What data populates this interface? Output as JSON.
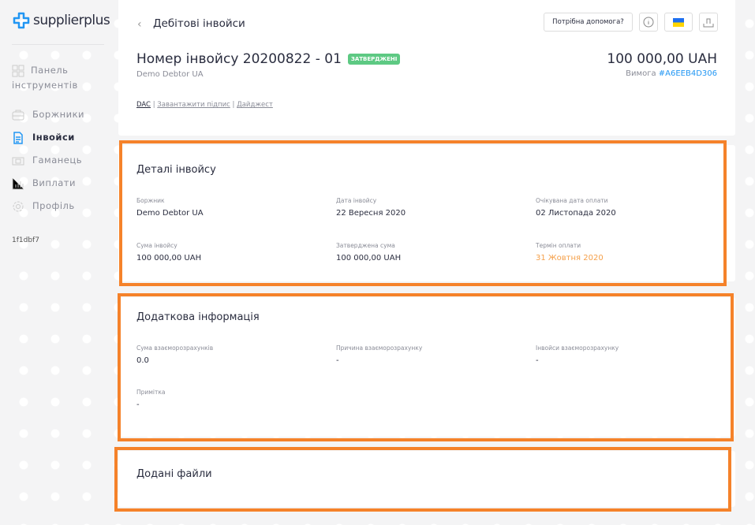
{
  "brand": {
    "name": "supplierplus",
    "color": "#2196f3"
  },
  "sidebar": {
    "items": [
      {
        "label": "Панель інструментів",
        "icon": "dashboard-icon",
        "active": false
      },
      {
        "label": "Боржники",
        "icon": "briefcase-icon",
        "active": false
      },
      {
        "label": "Інвойси",
        "icon": "document-icon",
        "active": true
      },
      {
        "label": "Гаманець",
        "icon": "wallet-icon",
        "active": false
      },
      {
        "label": "Виплати",
        "icon": "bar-chart-icon",
        "active": false
      },
      {
        "label": "Профіль",
        "icon": "gear-icon",
        "active": false
      }
    ],
    "version": "1f1dbf7"
  },
  "header": {
    "breadcrumb": "Дебітові інвойси",
    "help_label": "Потрібна допомога?",
    "title": "Номер інвойсу 20200822 - 01",
    "status": "ЗАТВЕРДЖЕНІ",
    "debtor": "Demo Debtor UA",
    "amount": "100 000,00 UAH",
    "request_label": "Вимога",
    "request_id": "#A6EEB4D306",
    "links": [
      "DAC",
      "Завантажити підпис",
      "Дайджест"
    ]
  },
  "details": {
    "title": "Деталі інвойсу",
    "fields": [
      {
        "label": "Боржник",
        "value": "Demo Debtor UA"
      },
      {
        "label": "Дата інвойсу",
        "value": "22 Вересня 2020"
      },
      {
        "label": "Очікувана дата оплати",
        "value": "02 Листопада 2020"
      },
      {
        "label": "Сума інвойсу",
        "value": "100 000,00 UAH"
      },
      {
        "label": "Затверджена сума",
        "value": "100 000,00 UAH"
      },
      {
        "label": "Термін оплати",
        "value": "31 Жовтня 2020"
      }
    ]
  },
  "extra": {
    "title": "Додаткова інформація",
    "fields": [
      {
        "label": "Сума взаєморозрахунків",
        "value": "0.0"
      },
      {
        "label": "Причина взаєморозрахунку",
        "value": "-"
      },
      {
        "label": "Інвойси взаєморозрахунку",
        "value": "-"
      },
      {
        "label": "Примітка",
        "value": "-"
      }
    ]
  },
  "files": {
    "title": "Додані файли"
  },
  "colors": {
    "highlight": "#f5822a",
    "due": "#f5a04a",
    "badge": "#5dc983"
  }
}
